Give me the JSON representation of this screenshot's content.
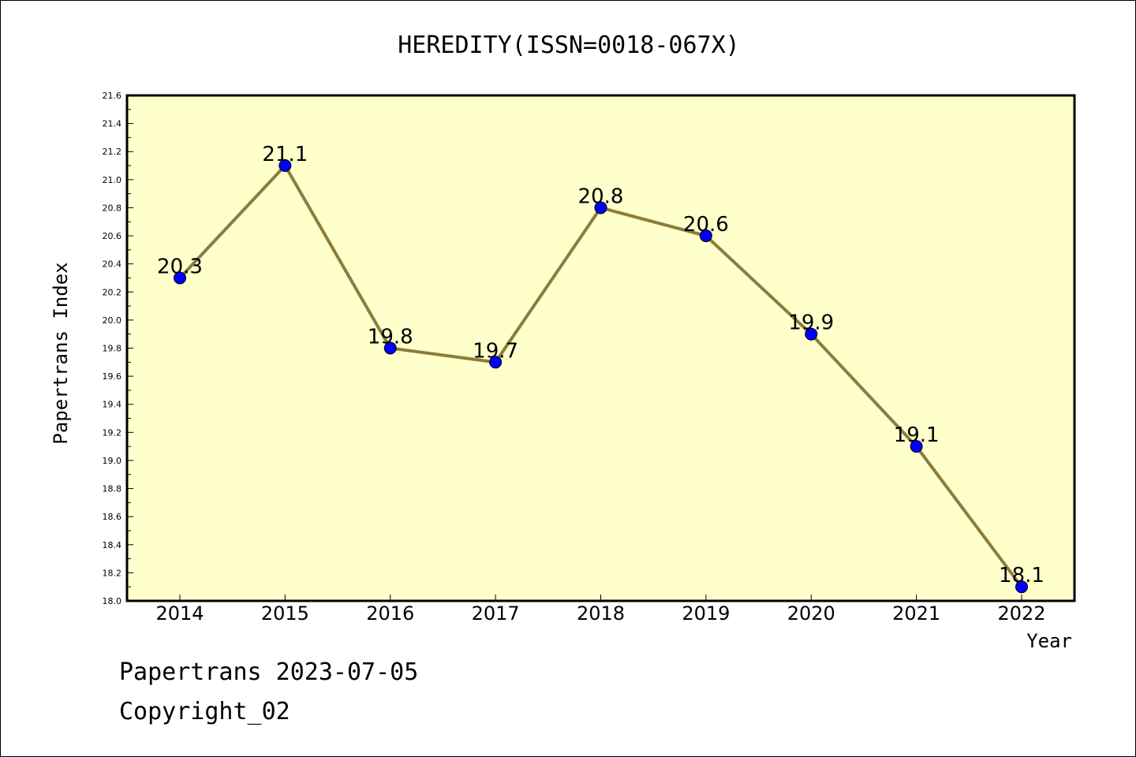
{
  "chart_data": {
    "type": "line",
    "title": "HEREDITY(ISSN=0018-067X)",
    "xlabel": "Year",
    "ylabel": "Papertrans Index",
    "categories": [
      "2014",
      "2015",
      "2016",
      "2017",
      "2018",
      "2019",
      "2020",
      "2021",
      "2022"
    ],
    "series": [
      {
        "values": [
          20.3,
          21.1,
          19.8,
          19.7,
          20.8,
          20.6,
          19.9,
          19.1,
          18.1
        ],
        "labels": [
          "20.3",
          "21.1",
          "19.8",
          "19.7",
          "20.8",
          "20.6",
          "19.9",
          "19.1",
          "18.1"
        ]
      }
    ],
    "ylim": [
      18.0,
      21.6
    ],
    "yticks": [
      "18.0",
      "18.2",
      "18.4",
      "18.6",
      "18.8",
      "19.0",
      "19.2",
      "19.4",
      "19.6",
      "19.8",
      "20.0",
      "20.2",
      "20.4",
      "20.6",
      "20.8",
      "21.0",
      "21.2",
      "21.4",
      "21.6"
    ],
    "grid": false,
    "legend": "none",
    "colors": {
      "plot_background": "#FFFFCC",
      "line": "#8B7D3A",
      "marker": "#0000FF"
    }
  },
  "footer": {
    "date_line": "Papertrans 2023-07-05",
    "copyright": "Copyright_02"
  }
}
